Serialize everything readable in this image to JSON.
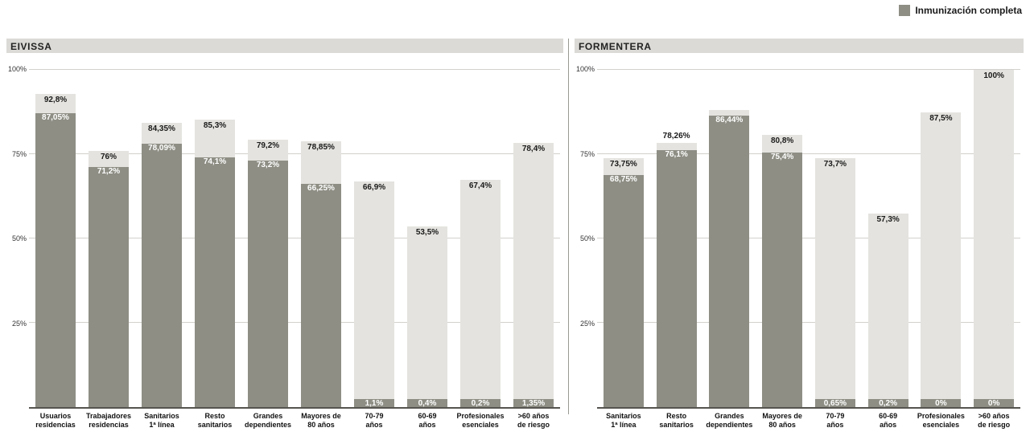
{
  "legend": {
    "label": "Inmunización completa"
  },
  "colors": {
    "total_bar": "#e4e3df",
    "complete_bar": "#8e8e85",
    "header_bg": "#dbdad6"
  },
  "y_axis_ticks": [
    {
      "label": "100%",
      "value": 100
    },
    {
      "label": "75%",
      "value": 75
    },
    {
      "label": "50%",
      "value": 50
    },
    {
      "label": "25%",
      "value": 25
    }
  ],
  "chart_data": [
    {
      "type": "bar",
      "title": "EIVISSA",
      "ylim": [
        0,
        100
      ],
      "categories": [
        "Usuarios\nresidencias",
        "Trabajadores\nresidencias",
        "Sanitarios\n1ª línea",
        "Resto\nsanitarios",
        "Grandes\ndependientes",
        "Mayores de\n80 años",
        "70-79\naños",
        "60-69\naños",
        "Profesionales\nesenciales",
        ">60 años\nde riesgo"
      ],
      "series": [
        {
          "id": "total",
          "values": [
            92.8,
            76,
            84.35,
            85.3,
            79.2,
            78.85,
            66.9,
            53.5,
            67.4,
            78.4
          ],
          "labels": [
            "92,8%",
            "76%",
            "84,35%",
            "85,3%",
            "79,2%",
            "78,85%",
            "66,9%",
            "53,5%",
            "67,4%",
            "78,4%"
          ]
        },
        {
          "id": "inmunizacion_completa",
          "values": [
            87.05,
            71.2,
            78.09,
            74.1,
            73.2,
            66.25,
            1.1,
            0.4,
            0.2,
            1.35
          ],
          "labels": [
            "87,05%",
            "71,2%",
            "78,09%",
            "74,1%",
            "73,2%",
            "66,25%",
            "1,1%",
            "0,4%",
            "0,2%",
            "1,35%"
          ]
        }
      ]
    },
    {
      "type": "bar",
      "title": "FORMENTERA",
      "ylim": [
        0,
        100
      ],
      "categories": [
        "Sanitarios\n1ª línea",
        "Resto\nsanitarios",
        "Grandes\ndependientes",
        "Mayores de\n80 años",
        "70-79\naños",
        "60-69\naños",
        "Profesionales\nesenciales",
        ">60 años\nde riesgo"
      ],
      "series": [
        {
          "id": "total",
          "values": [
            73.75,
            78.26,
            88,
            80.8,
            73.7,
            57.3,
            87.5,
            100
          ],
          "labels": [
            "73,75%",
            "78,26%",
            "",
            "80,8%",
            "73,7%",
            "57,3%",
            "87,5%",
            "100%"
          ]
        },
        {
          "id": "inmunizacion_completa",
          "values": [
            68.75,
            76.1,
            86.44,
            75.4,
            0.65,
            0.2,
            0,
            0
          ],
          "labels": [
            "68,75%",
            "76,1%",
            "86,44%",
            "75,4%",
            "0,65%",
            "0,2%",
            "0%",
            "0%"
          ]
        }
      ]
    }
  ]
}
